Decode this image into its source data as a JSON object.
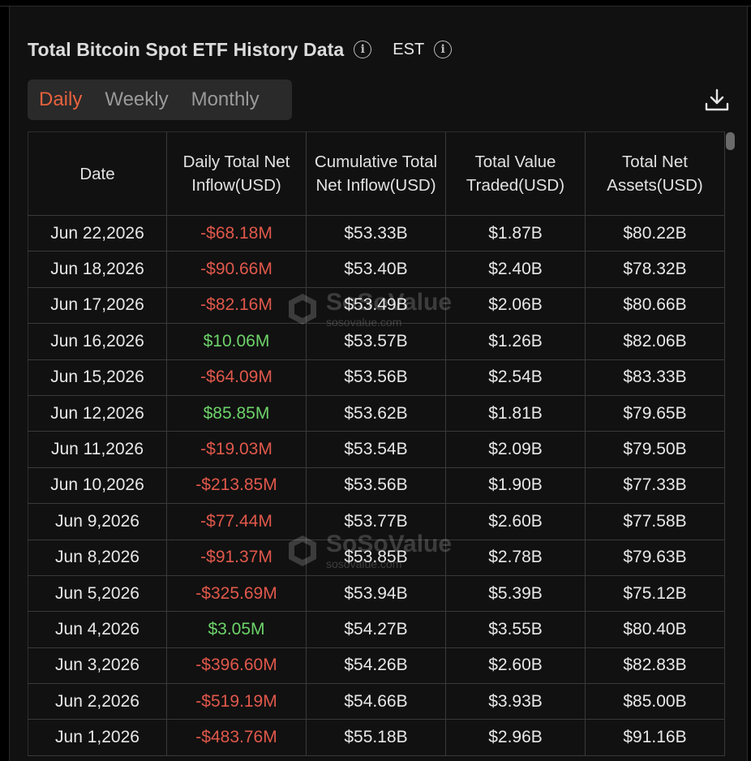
{
  "header": {
    "title": "Total Bitcoin Spot ETF History Data",
    "timezone": "EST"
  },
  "tabs": [
    {
      "label": "Daily",
      "active": true
    },
    {
      "label": "Weekly",
      "active": false
    },
    {
      "label": "Monthly",
      "active": false
    }
  ],
  "watermark": {
    "brand": "SoSoValue",
    "url": "sosovalue.com"
  },
  "table": {
    "headers": [
      "Date",
      "Daily Total Net Inflow(USD)",
      "Cumulative Total Net Inflow(USD)",
      "Total Value Traded(USD)",
      "Total Net Assets(USD)"
    ],
    "rows": [
      {
        "date": "Jun 22,2026",
        "inflow": "-$68.18M",
        "cumulative": "$53.33B",
        "traded": "$1.87B",
        "assets": "$80.22B"
      },
      {
        "date": "Jun 18,2026",
        "inflow": "-$90.66M",
        "cumulative": "$53.40B",
        "traded": "$2.40B",
        "assets": "$78.32B"
      },
      {
        "date": "Jun 17,2026",
        "inflow": "-$82.16M",
        "cumulative": "$53.49B",
        "traded": "$2.06B",
        "assets": "$80.66B"
      },
      {
        "date": "Jun 16,2026",
        "inflow": "$10.06M",
        "cumulative": "$53.57B",
        "traded": "$1.26B",
        "assets": "$82.06B"
      },
      {
        "date": "Jun 15,2026",
        "inflow": "-$64.09M",
        "cumulative": "$53.56B",
        "traded": "$2.54B",
        "assets": "$83.33B"
      },
      {
        "date": "Jun 12,2026",
        "inflow": "$85.85M",
        "cumulative": "$53.62B",
        "traded": "$1.81B",
        "assets": "$79.65B"
      },
      {
        "date": "Jun 11,2026",
        "inflow": "-$19.03M",
        "cumulative": "$53.54B",
        "traded": "$2.09B",
        "assets": "$79.50B"
      },
      {
        "date": "Jun 10,2026",
        "inflow": "-$213.85M",
        "cumulative": "$53.56B",
        "traded": "$1.90B",
        "assets": "$77.33B"
      },
      {
        "date": "Jun 9,2026",
        "inflow": "-$77.44M",
        "cumulative": "$53.77B",
        "traded": "$2.60B",
        "assets": "$77.58B"
      },
      {
        "date": "Jun 8,2026",
        "inflow": "-$91.37M",
        "cumulative": "$53.85B",
        "traded": "$2.78B",
        "assets": "$79.63B"
      },
      {
        "date": "Jun 5,2026",
        "inflow": "-$325.69M",
        "cumulative": "$53.94B",
        "traded": "$5.39B",
        "assets": "$75.12B"
      },
      {
        "date": "Jun 4,2026",
        "inflow": "$3.05M",
        "cumulative": "$54.27B",
        "traded": "$3.55B",
        "assets": "$80.40B"
      },
      {
        "date": "Jun 3,2026",
        "inflow": "-$396.60M",
        "cumulative": "$54.26B",
        "traded": "$2.60B",
        "assets": "$82.83B"
      },
      {
        "date": "Jun 2,2026",
        "inflow": "-$519.19M",
        "cumulative": "$54.66B",
        "traded": "$3.93B",
        "assets": "$85.00B"
      },
      {
        "date": "Jun 1,2026",
        "inflow": "-$483.76M",
        "cumulative": "$55.18B",
        "traded": "$2.96B",
        "assets": "$91.16B"
      }
    ]
  },
  "colors": {
    "accent": "#e8623e",
    "negative": "#e0584b",
    "positive": "#6dd36a",
    "panel": "#111111"
  },
  "icons": {
    "info": "info-circle-icon",
    "download": "download-icon"
  }
}
